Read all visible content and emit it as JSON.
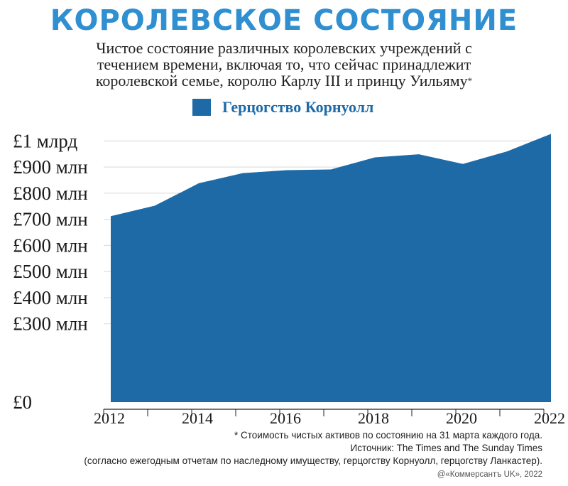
{
  "header": {
    "title": "КОРОЛЕВСКОЕ СОСТОЯНИЕ",
    "subtitle": "Чистое состояние различных королевских учреждений с течением времени, включая то, что сейчас принадлежит королевской семье, королю Карлу III и принцу Уильяму",
    "subtitle_mark": "*"
  },
  "legend": {
    "label": "Герцогство Корнуолл"
  },
  "footer": {
    "note": "* Стоимость чистых активов по состоянию на 31 марта каждого года.",
    "source": "Источник: The Times and The Sunday Times",
    "details": "(согласно ежегодным отчетам по наследному имуществу, герцогству Корнуолл, герцогству Ланкастер).",
    "copyright": "@«Коммерсантъ UK», 2022"
  },
  "colors": {
    "area": "#1d6aa6",
    "title": "#2f8fd0",
    "grid": "#d9d9d9"
  },
  "chart_data": {
    "type": "area",
    "x": [
      2012,
      2013,
      2014,
      2015,
      2016,
      2017,
      2018,
      2019,
      2020,
      2021,
      2022
    ],
    "series": [
      {
        "name": "Герцогство Корнуолл",
        "values": [
          712,
          752,
          838,
          877,
          888,
          891,
          937,
          949,
          912,
          960,
          1027
        ]
      }
    ],
    "xticks": [
      "2012",
      "2014",
      "2016",
      "2018",
      "2020",
      "2022"
    ],
    "yticks": [
      "£0",
      "£300 млн",
      "£400 млн",
      "£500 млн",
      "£600 млн",
      "£700 млн",
      "£800 млн",
      "£900 млн",
      "£1 млрд"
    ],
    "ytick_values": [
      0,
      300,
      400,
      500,
      600,
      700,
      800,
      900,
      1000
    ],
    "ylim": [
      0,
      1050
    ],
    "xlim": [
      2012,
      2022
    ],
    "grid": true,
    "legend_position": "top"
  }
}
